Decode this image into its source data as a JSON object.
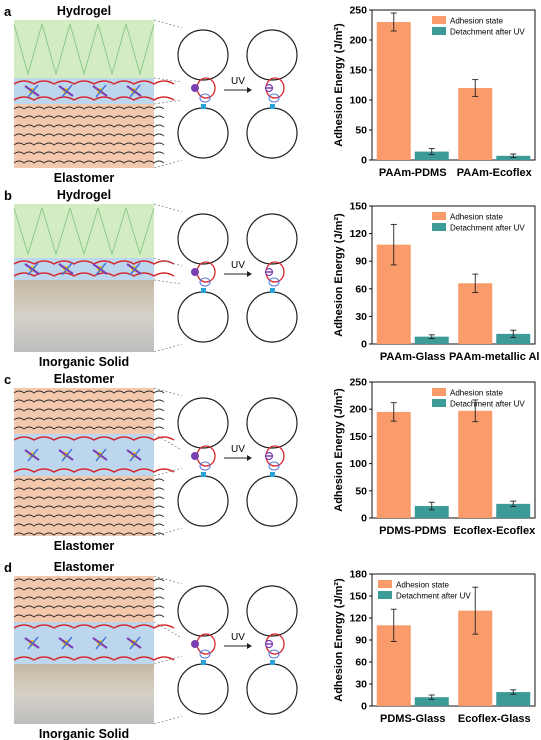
{
  "colors": {
    "adhesion": "#f99b6a",
    "detachment": "#3d9b97",
    "hydrogel": "#d4ecc3",
    "elastomer": "#f4c8ad",
    "interface": "#bcd6ee",
    "inorganic": "#c9c3b4"
  },
  "uv_label": "UV",
  "panels": [
    {
      "label": "a",
      "top_material": "Hydrogel",
      "bottom_material": "Elastomer",
      "chart_data": {
        "type": "bar",
        "ylabel": "Adhesion Energy (J/m²)",
        "ylim": [
          0,
          250
        ],
        "yticks": [
          0,
          50,
          100,
          150,
          200,
          250
        ],
        "categories": [
          "PAAm-PDMS",
          "PAAm-Ecoflex"
        ],
        "legend": "top-right",
        "series": [
          {
            "name": "Adhesion state",
            "values": [
              230,
              120
            ],
            "errors": [
              15,
              14
            ]
          },
          {
            "name": "Detachment after UV",
            "values": [
              14,
              7
            ],
            "errors": [
              5,
              3
            ]
          }
        ]
      }
    },
    {
      "label": "b",
      "top_material": "Hydrogel",
      "bottom_material": "Inorganic Solid",
      "chart_data": {
        "type": "bar",
        "ylabel": "Adhesion Energy (J/m²)",
        "ylim": [
          0,
          150
        ],
        "yticks": [
          0,
          30,
          60,
          90,
          120,
          150
        ],
        "categories": [
          "PAAm-Glass",
          "PAAm-metallic Al"
        ],
        "legend": "top-right",
        "series": [
          {
            "name": "Adhesion state",
            "values": [
              108,
              66
            ],
            "errors": [
              22,
              10
            ]
          },
          {
            "name": "Detachment after UV",
            "values": [
              8,
              11
            ],
            "errors": [
              2,
              4
            ]
          }
        ]
      }
    },
    {
      "label": "c",
      "top_material": "Elastomer",
      "bottom_material": "Elastomer",
      "chart_data": {
        "type": "bar",
        "ylabel": "Adhesion Energy (J/m²)",
        "ylim": [
          0,
          250
        ],
        "yticks": [
          0,
          50,
          100,
          150,
          200,
          250
        ],
        "categories": [
          "PDMS-PDMS",
          "Ecoflex-Ecoflex"
        ],
        "legend": "top-right",
        "series": [
          {
            "name": "Adhesion state",
            "values": [
              195,
              197
            ],
            "errors": [
              17,
              20
            ]
          },
          {
            "name": "Detachment after UV",
            "values": [
              22,
              26
            ],
            "errors": [
              7,
              5
            ]
          }
        ]
      }
    },
    {
      "label": "d",
      "top_material": "Elastomer",
      "bottom_material": "Inorganic Solid",
      "chart_data": {
        "type": "bar",
        "ylabel": "Adhesion Energy (J/m²)",
        "ylim": [
          0,
          180
        ],
        "yticks": [
          0,
          30,
          60,
          90,
          120,
          150,
          180
        ],
        "categories": [
          "PDMS-Glass",
          "Ecoflex-Glass"
        ],
        "legend": "top-left",
        "series": [
          {
            "name": "Adhesion state",
            "values": [
              110,
              130
            ],
            "errors": [
              22,
              32
            ]
          },
          {
            "name": "Detachment after UV",
            "values": [
              12,
              19
            ],
            "errors": [
              3,
              3
            ]
          }
        ]
      }
    }
  ]
}
